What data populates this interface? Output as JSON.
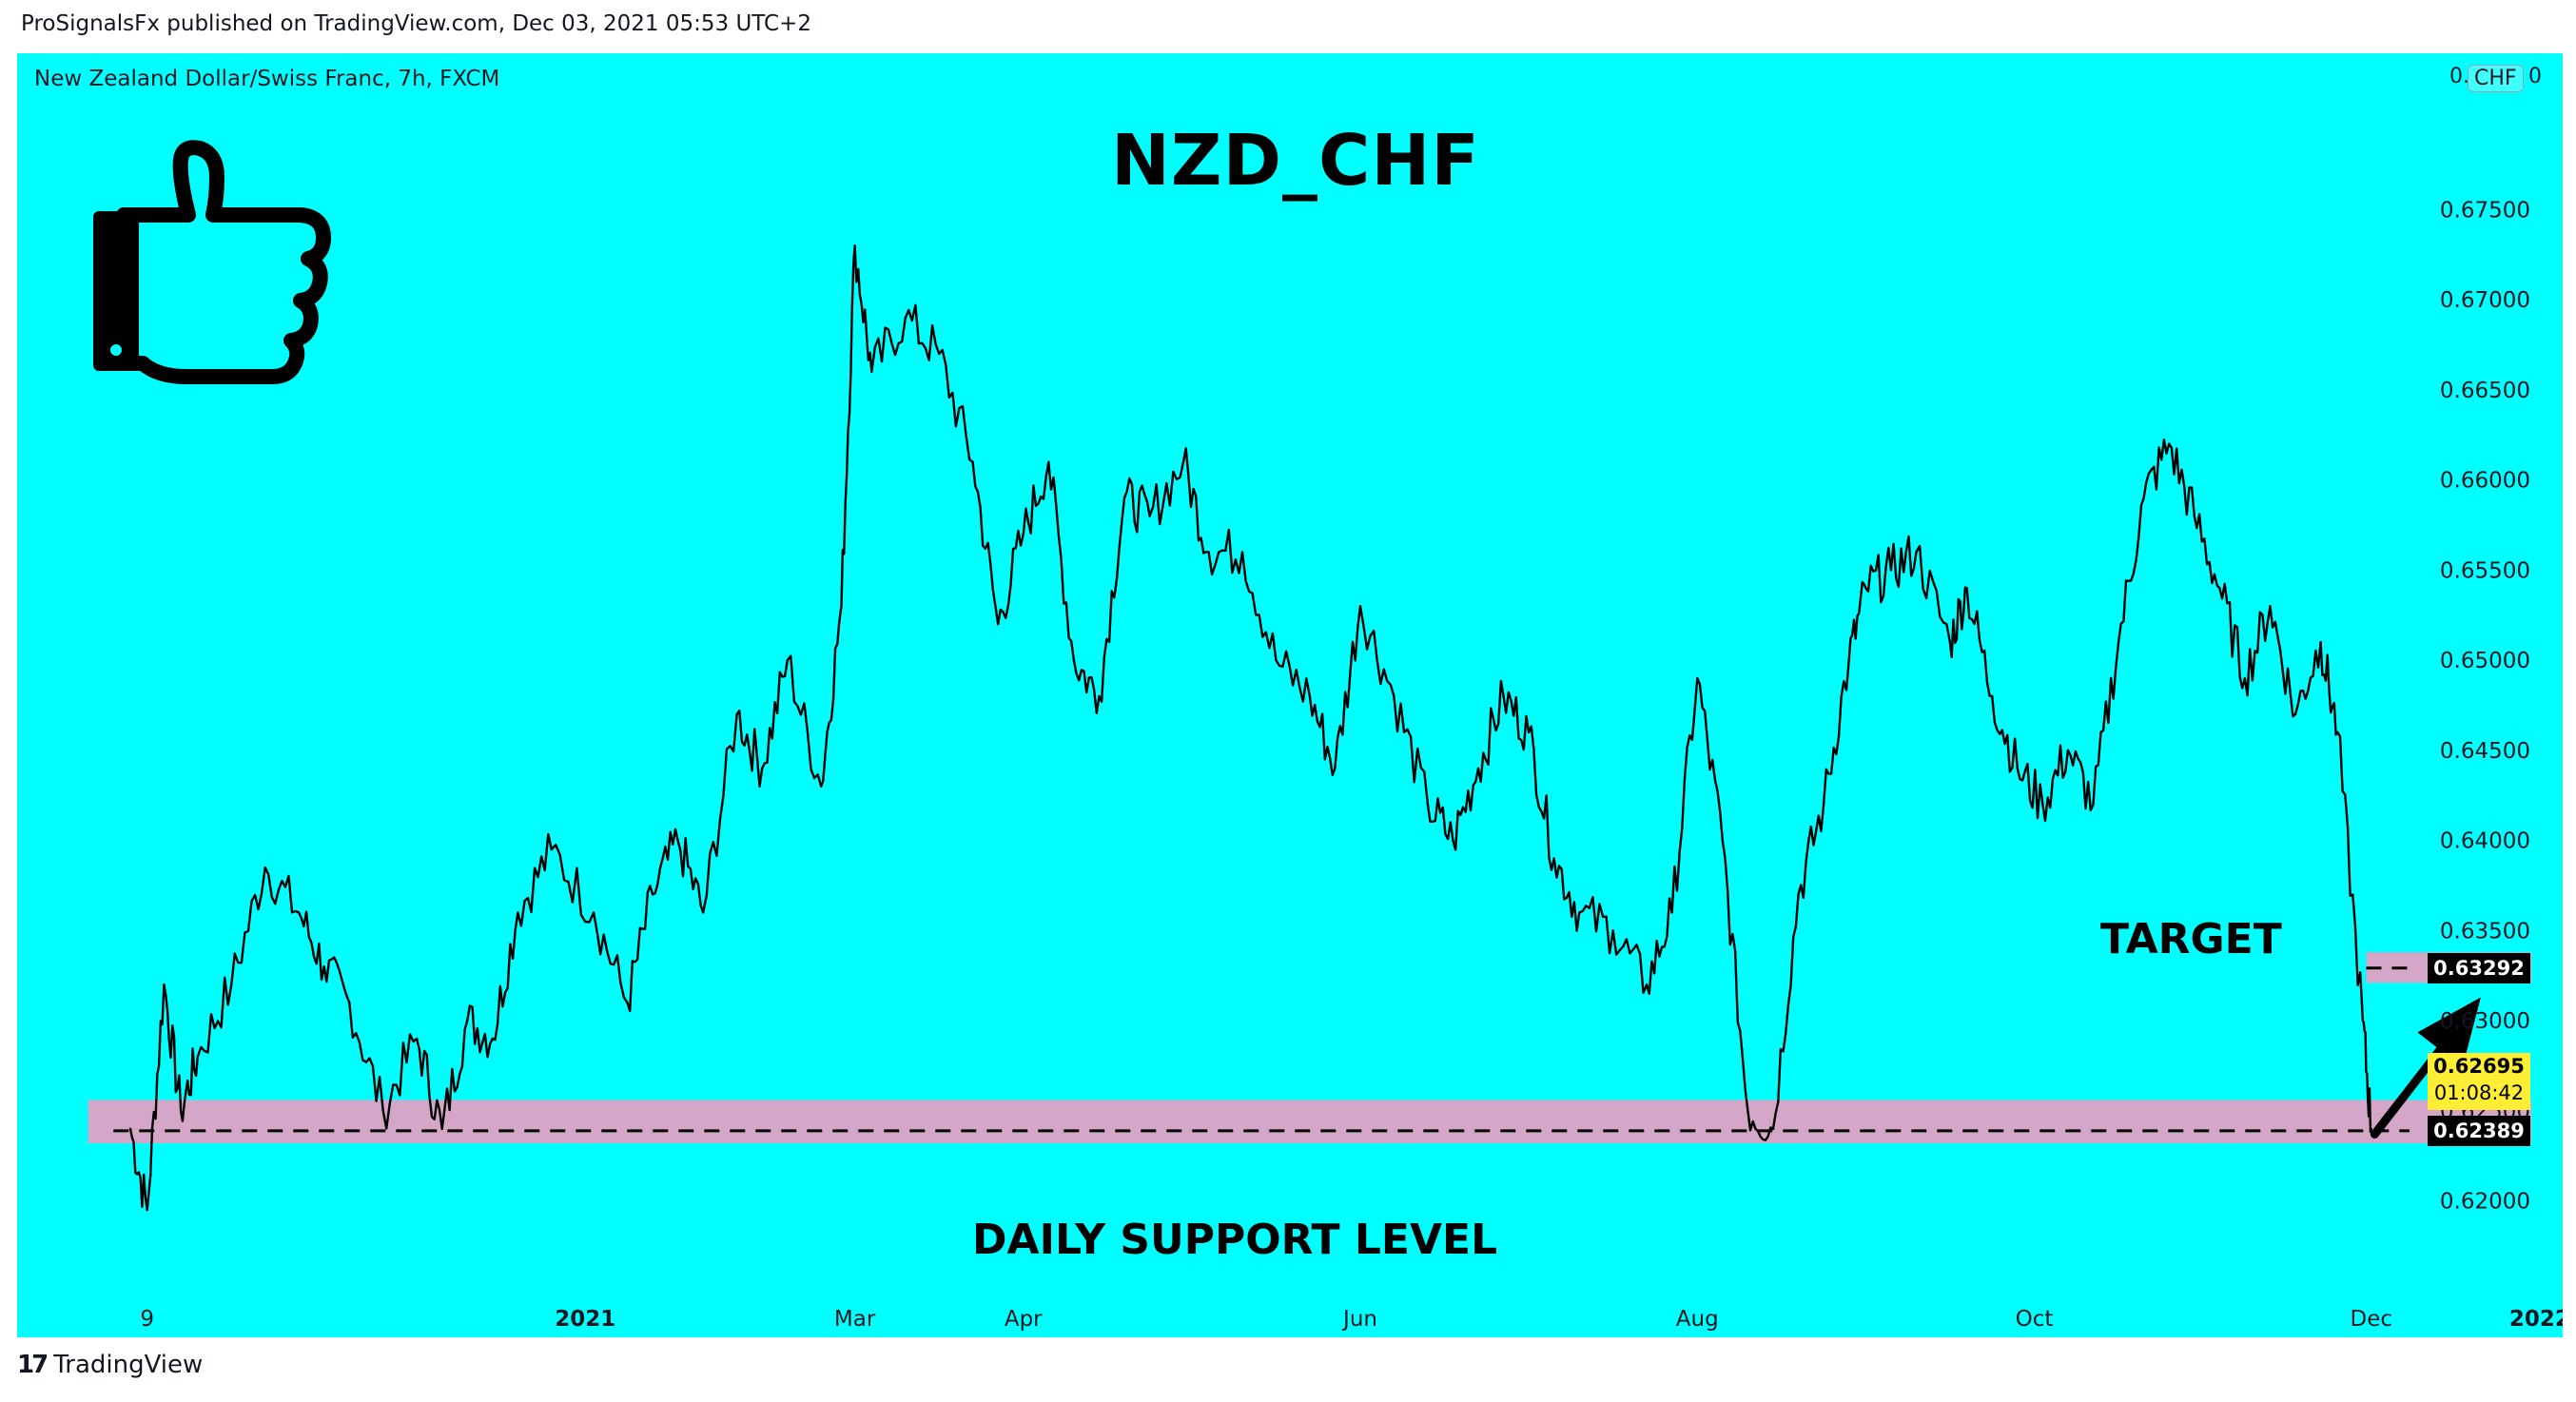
{
  "header": {
    "published_line": "ProSignalsFx published on TradingView.com, Dec 03, 2021 05:53 UTC+2"
  },
  "chart_meta": {
    "symbol_line": "New Zealand Dollar/Swiss Franc, 7h, FXCM",
    "currency_partial": "0.",
    "currency_partial_end": "0",
    "currency_badge": "CHF",
    "background_color": "#00ffff",
    "line_color": "#000000",
    "zone_color": "#d4a6c8",
    "thumbs_up_icon": "thumbs-up-icon"
  },
  "footer": {
    "brand": "TradingView",
    "logo_mark": "17"
  },
  "chart_data": {
    "type": "line",
    "title": "NZD_CHF",
    "xlabel": "",
    "ylabel": "",
    "ylim": [
      0.6185,
      0.6775
    ],
    "grid": false,
    "y_ticks": [
      "0.67500",
      "0.67000",
      "0.66500",
      "0.66000",
      "0.65500",
      "0.65000",
      "0.64500",
      "0.64000",
      "0.63500",
      "0.63000",
      "0.62500",
      "0.62000"
    ],
    "x_ticks": [
      {
        "label": "9",
        "t": 0.8
      },
      {
        "label": "2021",
        "t": 3.4
      },
      {
        "label": "Mar",
        "t": 5.0
      },
      {
        "label": "Apr",
        "t": 6.0
      },
      {
        "label": "Jun",
        "t": 8.0
      },
      {
        "label": "Aug",
        "t": 10.0
      },
      {
        "label": "Oct",
        "t": 12.0
      },
      {
        "label": "Dec",
        "t": 14.0
      },
      {
        "label": "2022",
        "t": 15.0
      }
    ],
    "series": [
      {
        "x": [
          0.7,
          0.8,
          0.9,
          1.0,
          1.1,
          1.3,
          1.5,
          1.7,
          1.85,
          2.0,
          2.2,
          2.4,
          2.55,
          2.7,
          2.85,
          3.0,
          3.2,
          3.45,
          3.65,
          3.8,
          3.95,
          4.1,
          4.3,
          4.45,
          4.6,
          4.8,
          4.92,
          5.0,
          5.1,
          5.3,
          5.5,
          5.7,
          5.85,
          6.0,
          6.15,
          6.3,
          6.45,
          6.6,
          6.75,
          6.95,
          7.1,
          7.3,
          7.5,
          7.7,
          7.85,
          8.0,
          8.2,
          8.4,
          8.55,
          8.7,
          8.85,
          9.0,
          9.15,
          9.3,
          9.5,
          9.7,
          9.85,
          10.0,
          10.15,
          10.3,
          10.45,
          10.6,
          10.75,
          10.9,
          11.0,
          11.15,
          11.3,
          11.5,
          11.6,
          11.75,
          11.9,
          12.05,
          12.2,
          12.35,
          12.5,
          12.65,
          12.8,
          12.95,
          13.1,
          13.25,
          13.4,
          13.55,
          13.7,
          13.8,
          13.95,
          14.0
        ],
        "values": [
          0.624,
          0.6195,
          0.632,
          0.625,
          0.628,
          0.632,
          0.6385,
          0.636,
          0.633,
          0.631,
          0.625,
          0.629,
          0.624,
          0.63,
          0.629,
          0.636,
          0.6395,
          0.636,
          0.631,
          0.637,
          0.64,
          0.636,
          0.647,
          0.644,
          0.65,
          0.643,
          0.653,
          0.673,
          0.666,
          0.669,
          0.667,
          0.661,
          0.652,
          0.657,
          0.661,
          0.65,
          0.648,
          0.659,
          0.658,
          0.661,
          0.656,
          0.656,
          0.65,
          0.648,
          0.644,
          0.653,
          0.648,
          0.642,
          0.64,
          0.644,
          0.648,
          0.646,
          0.639,
          0.636,
          0.635,
          0.632,
          0.636,
          0.649,
          0.64,
          0.625,
          0.624,
          0.637,
          0.642,
          0.65,
          0.654,
          0.655,
          0.656,
          0.651,
          0.654,
          0.648,
          0.644,
          0.642,
          0.645,
          0.642,
          0.651,
          0.659,
          0.662,
          0.658,
          0.654,
          0.649,
          0.653,
          0.647,
          0.651,
          0.646,
          0.63,
          0.624
        ]
      }
    ],
    "support_zone": {
      "y_low": 0.6232,
      "y_high": 0.6256,
      "t_start": 0.45,
      "t_end": 14.95,
      "label": "DAILY SUPPORT LEVEL"
    },
    "target_zone": {
      "y_low": 0.6321,
      "y_high": 0.6338,
      "t_start": 13.97,
      "t_end": 14.95,
      "label": "TARGET"
    },
    "levels": [
      {
        "label": "0.63292",
        "value": 0.63292
      },
      {
        "label": "0.62389",
        "value": 0.62389
      }
    ],
    "last_price": {
      "price": "0.62695",
      "countdown": "01:08:42",
      "value": 0.62695
    },
    "arrow": {
      "from_t": 14.02,
      "from_y": 0.6237,
      "to_t": 14.65,
      "to_y": 0.6313
    }
  }
}
